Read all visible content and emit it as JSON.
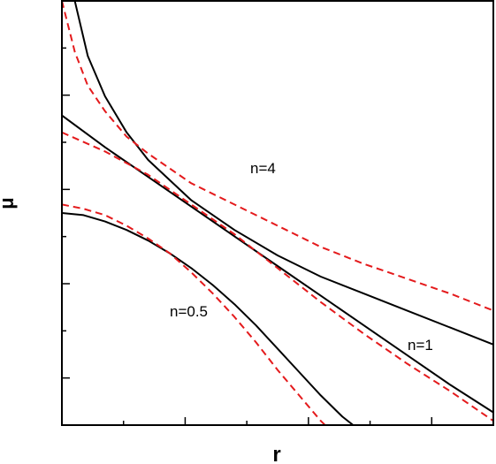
{
  "chart_data": {
    "type": "line",
    "title": "",
    "xlabel": "r",
    "ylabel": "μ",
    "xlim": [
      0,
      1
    ],
    "ylim": [
      0,
      1
    ],
    "grid": false,
    "legend": "none",
    "annotations": [
      "n=4",
      "n=1",
      "n=0.5"
    ],
    "colors": {
      "solid": "#000000",
      "dashed": "#e41a1c"
    },
    "series": [
      {
        "style": "solid",
        "x": [
          0.03,
          0.06,
          0.1,
          0.15,
          0.2,
          0.3,
          0.4,
          0.5,
          0.6,
          0.7,
          0.8,
          0.9,
          1.0
        ],
        "y": [
          1.0,
          0.87,
          0.775,
          0.69,
          0.625,
          0.53,
          0.46,
          0.4,
          0.35,
          0.31,
          0.27,
          0.23,
          0.19
        ]
      },
      {
        "style": "dashed",
        "x": [
          0.0,
          0.03,
          0.06,
          0.1,
          0.15,
          0.2,
          0.3,
          0.4,
          0.5,
          0.6,
          0.7,
          0.8,
          0.9,
          1.0
        ],
        "y": [
          1.0,
          0.88,
          0.8,
          0.74,
          0.68,
          0.64,
          0.57,
          0.52,
          0.47,
          0.42,
          0.38,
          0.345,
          0.31,
          0.27
        ]
      },
      {
        "style": "solid",
        "x": [
          0.0,
          0.1,
          0.2,
          0.3,
          0.4,
          0.5,
          0.6,
          0.7,
          0.8,
          0.9,
          1.0
        ],
        "y": [
          0.73,
          0.655,
          0.585,
          0.515,
          0.445,
          0.375,
          0.305,
          0.235,
          0.165,
          0.095,
          0.03
        ]
      },
      {
        "style": "dashed",
        "x": [
          0.0,
          0.1,
          0.2,
          0.3,
          0.4,
          0.5,
          0.6,
          0.7,
          0.8,
          0.9,
          1.0
        ],
        "y": [
          0.69,
          0.645,
          0.59,
          0.52,
          0.45,
          0.37,
          0.29,
          0.215,
          0.145,
          0.08,
          0.01
        ]
      },
      {
        "style": "solid",
        "x": [
          0.0,
          0.05,
          0.1,
          0.15,
          0.2,
          0.25,
          0.3,
          0.35,
          0.4,
          0.45,
          0.5,
          0.55,
          0.6,
          0.65,
          0.7
        ],
        "y": [
          0.5,
          0.495,
          0.48,
          0.46,
          0.435,
          0.405,
          0.37,
          0.33,
          0.285,
          0.235,
          0.18,
          0.125,
          0.07,
          0.02,
          -0.02
        ]
      },
      {
        "style": "dashed",
        "x": [
          0.0,
          0.05,
          0.1,
          0.15,
          0.2,
          0.25,
          0.3,
          0.35,
          0.4,
          0.45,
          0.5,
          0.55,
          0.6,
          0.65
        ],
        "y": [
          0.52,
          0.51,
          0.495,
          0.47,
          0.44,
          0.405,
          0.36,
          0.31,
          0.255,
          0.195,
          0.13,
          0.07,
          0.01,
          -0.04
        ]
      }
    ]
  }
}
